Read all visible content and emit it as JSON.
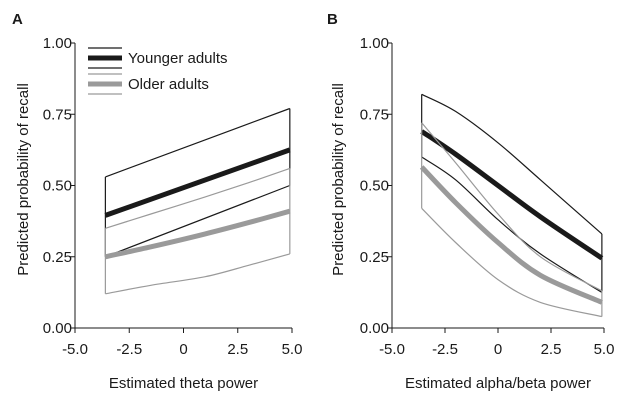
{
  "chart_data": [
    {
      "panel": "A",
      "type": "line",
      "title": "",
      "xlabel": "Estimated theta power",
      "ylabel": "Predicted probability of recall",
      "xlim": [
        -5.0,
        5.0
      ],
      "ylim": [
        0.0,
        1.0
      ],
      "x_ticks": [
        "-5.0",
        "-2.5",
        "0",
        "2.5",
        "5.0"
      ],
      "y_ticks": [
        "0.00",
        "0.25",
        "0.50",
        "0.75",
        "1.00"
      ],
      "grid": false,
      "legend_position": "top-left",
      "series": [
        {
          "name": "Younger adults",
          "color": "#1a1a1a",
          "x": [
            -3.6,
            4.9
          ],
          "mean": [
            0.395,
            0.625
          ],
          "ci_upper": [
            0.53,
            0.77
          ],
          "ci_lower": [
            0.25,
            0.5
          ]
        },
        {
          "name": "Older adults",
          "color": "#9a9a9a",
          "x": [
            -3.6,
            -1.5,
            1.0,
            3.0,
            4.9
          ],
          "mean": [
            0.25,
            0.285,
            0.33,
            0.37,
            0.41
          ],
          "ci_upper": [
            0.35,
            0.4,
            0.46,
            0.51,
            0.56
          ],
          "ci_lower": [
            0.12,
            0.15,
            0.18,
            0.22,
            0.26
          ]
        }
      ]
    },
    {
      "panel": "B",
      "type": "line",
      "title": "",
      "xlabel": "Estimated alpha/beta power",
      "ylabel": "Predicted probability of recall",
      "xlim": [
        -5.0,
        5.0
      ],
      "ylim": [
        0.0,
        1.0
      ],
      "x_ticks": [
        "-5.0",
        "-2.5",
        "0",
        "2.5",
        "5.0"
      ],
      "y_ticks": [
        "0.00",
        "0.25",
        "0.50",
        "0.75",
        "1.00"
      ],
      "grid": false,
      "series": [
        {
          "name": "Younger adults",
          "color": "#1a1a1a",
          "x": [
            -3.6,
            -2.0,
            0.0,
            2.0,
            4.9
          ],
          "mean": [
            0.69,
            0.61,
            0.5,
            0.39,
            0.245
          ],
          "ci_upper": [
            0.82,
            0.76,
            0.65,
            0.52,
            0.33
          ],
          "ci_lower": [
            0.6,
            0.52,
            0.38,
            0.26,
            0.125
          ]
        },
        {
          "name": "Older adults",
          "color": "#9a9a9a",
          "x": [
            -3.6,
            -2.0,
            0.0,
            2.0,
            4.9
          ],
          "mean": [
            0.565,
            0.44,
            0.3,
            0.185,
            0.09
          ],
          "ci_upper": [
            0.72,
            0.58,
            0.4,
            0.25,
            0.13
          ],
          "ci_lower": [
            0.42,
            0.3,
            0.17,
            0.09,
            0.04
          ]
        }
      ]
    }
  ]
}
